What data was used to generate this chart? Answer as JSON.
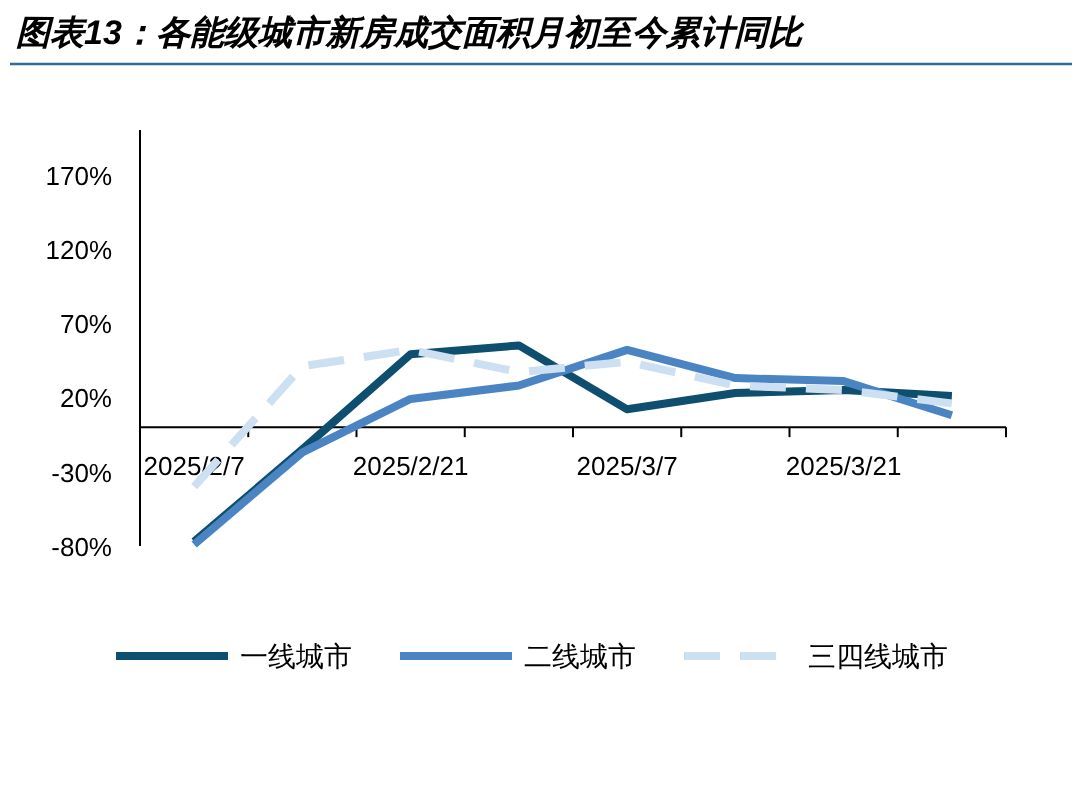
{
  "chart_data": {
    "type": "line",
    "title": "图表13：各能级城市新房成交面积月初至今累计同比",
    "categories": [
      "2025/2/7",
      null,
      "2025/2/21",
      null,
      "2025/3/7",
      null,
      "2025/3/21",
      null
    ],
    "ylim": [
      -80,
      200
    ],
    "yticks": [
      {
        "value": -80,
        "label": "-80%"
      },
      {
        "value": -30,
        "label": "-30%"
      },
      {
        "value": 20,
        "label": "20%"
      },
      {
        "value": 70,
        "label": "70%"
      },
      {
        "value": 120,
        "label": "120%"
      },
      {
        "value": 170,
        "label": "170%"
      }
    ],
    "legend": "bottom",
    "grid": false,
    "series": [
      {
        "name": "一线城市",
        "color": "#0e4e6e",
        "line_style": "solid",
        "values": [
          -77,
          -15,
          49,
          55,
          12,
          23,
          25,
          21
        ]
      },
      {
        "name": "二线城市",
        "color": "#4a84c2",
        "line_style": "solid",
        "values": [
          -79,
          -17,
          19,
          28,
          52,
          33,
          31,
          8
        ]
      },
      {
        "name": "三四线城市",
        "color": "#cde0f2",
        "line_style": "dashed",
        "values": [
          -40,
          41,
          52,
          37,
          44,
          28,
          25,
          16
        ]
      }
    ]
  }
}
